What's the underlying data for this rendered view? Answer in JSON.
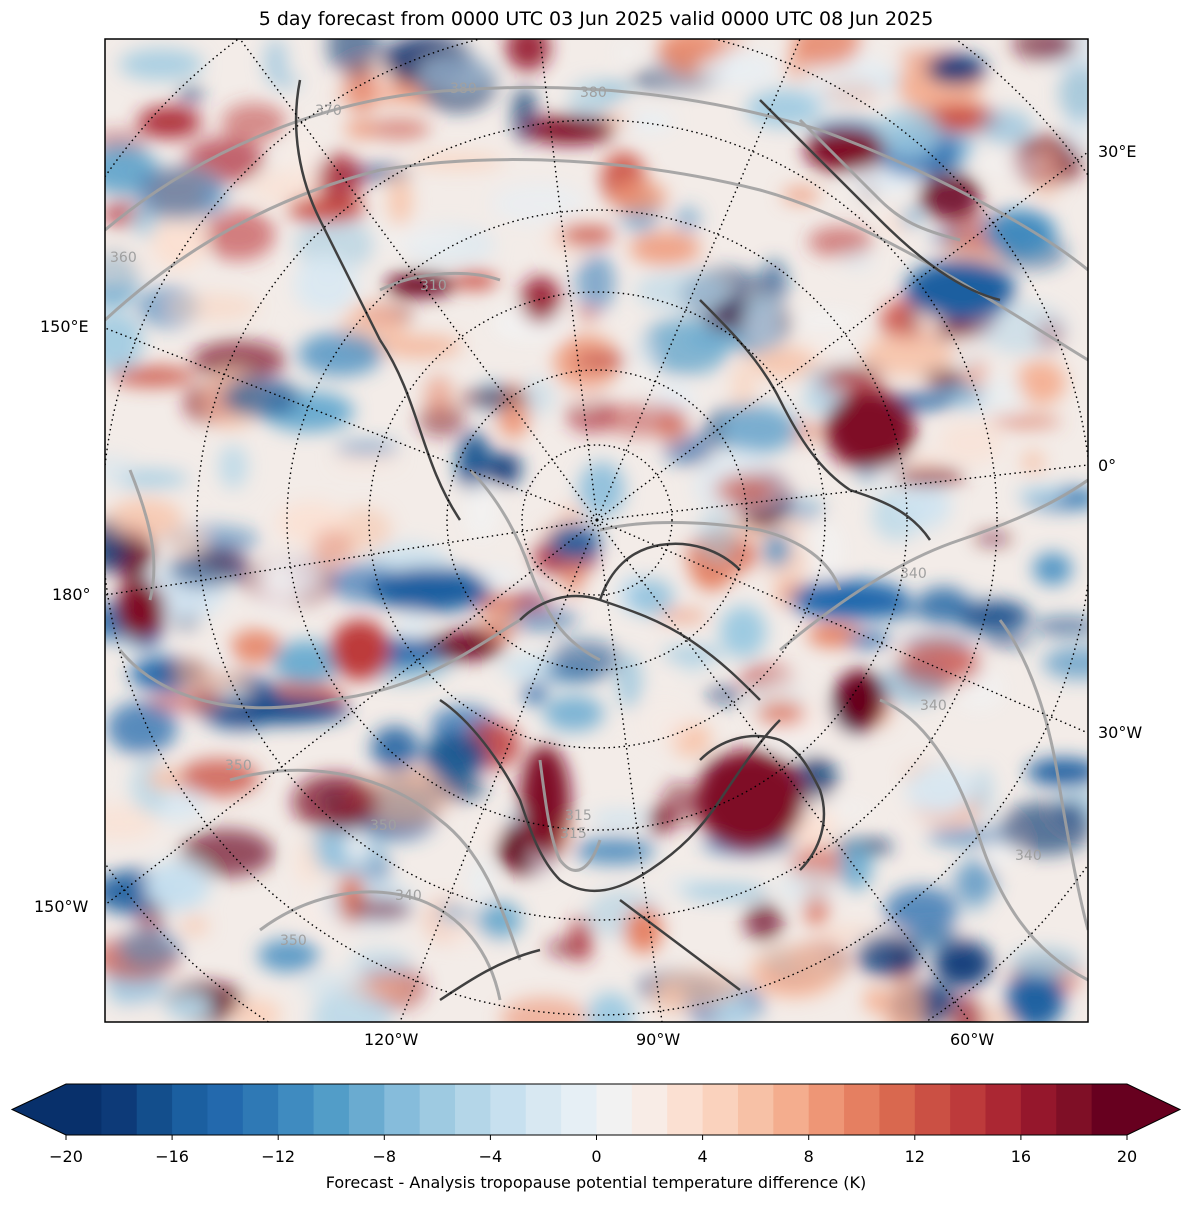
{
  "title": "5 day forecast from 0000 UTC 03 Jun 2025 valid 0000 UTC 08 Jun 2025",
  "longitude_labels": {
    "right": [
      "30°E",
      "0°",
      "30°W"
    ],
    "left": [
      "150°E",
      "180°",
      "150°W"
    ],
    "bottom": [
      "120°W",
      "90°W",
      "60°W"
    ]
  },
  "contour_labels": [
    "380",
    "380",
    "370",
    "360",
    "350",
    "340",
    "315",
    "310",
    "350",
    "340",
    "340",
    "350",
    "340",
    "315"
  ],
  "colorbar": {
    "ticks": [
      "−20",
      "−16",
      "−12",
      "−8",
      "−4",
      "0",
      "4",
      "8",
      "12",
      "16",
      "20"
    ],
    "label": "Forecast - Analysis tropopause potential temperature difference (K)",
    "colors": [
      "#08306b",
      "#0d3a78",
      "#134e8c",
      "#1b5fa0",
      "#2369ad",
      "#2f79b5",
      "#3f8bc0",
      "#529dc8",
      "#6aabd0",
      "#86bcdb",
      "#9ecae1",
      "#b4d6e8",
      "#c7e0ef",
      "#d8e8f2",
      "#e6eff5",
      "#f2f2f2",
      "#f8ece6",
      "#fbe0d2",
      "#fad2bd",
      "#f7c1a6",
      "#f4ad8e",
      "#ee9676",
      "#e57f61",
      "#d9684f",
      "#cb5044",
      "#bd3a3b",
      "#ab2733",
      "#95172c",
      "#7f0f26",
      "#67001f"
    ],
    "min": -20,
    "max": 20
  }
}
